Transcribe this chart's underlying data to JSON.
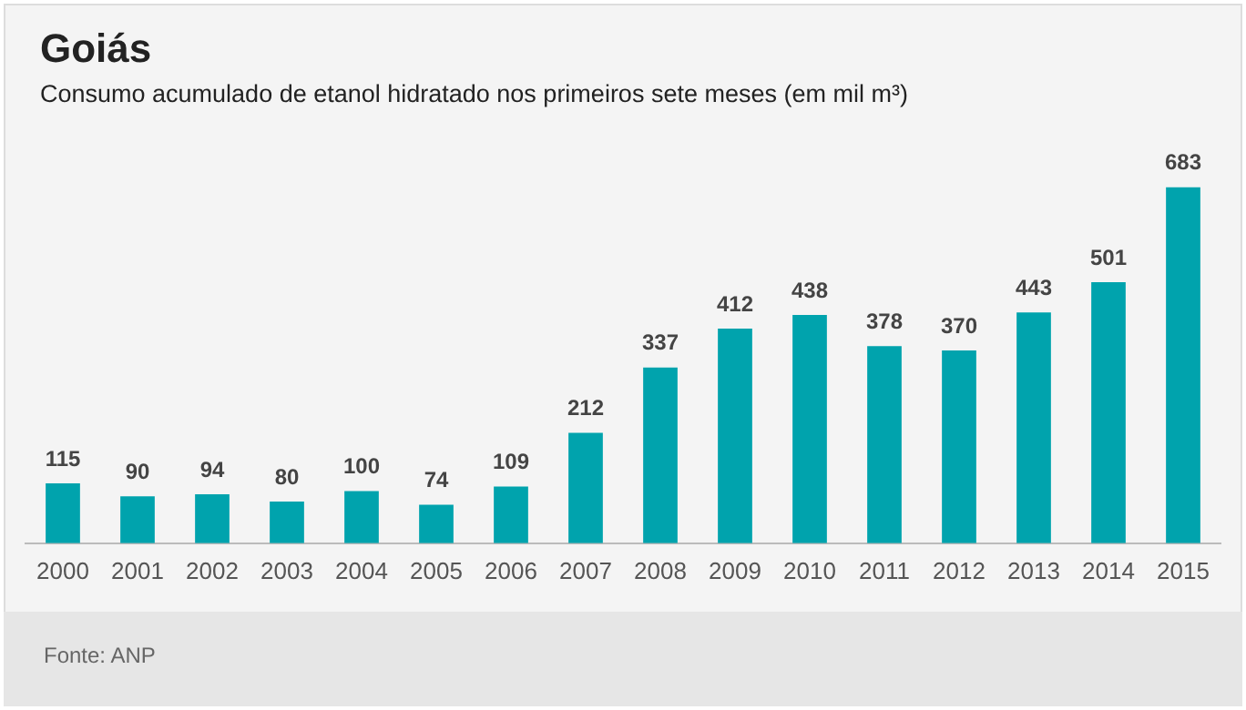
{
  "chart_data": {
    "type": "bar",
    "title": "Goiás",
    "subtitle": "Consumo acumulado de etanol hidratado nos primeiros sete meses (em mil m³)",
    "categories": [
      "2000",
      "2001",
      "2002",
      "2003",
      "2004",
      "2005",
      "2006",
      "2007",
      "2008",
      "2009",
      "2010",
      "2011",
      "2012",
      "2013",
      "2014",
      "2015"
    ],
    "values": [
      115,
      90,
      94,
      80,
      100,
      74,
      109,
      212,
      337,
      412,
      438,
      378,
      370,
      443,
      501,
      683
    ],
    "color": "#00a3ad",
    "data_labels": true,
    "grid": false,
    "legend": false,
    "annotations": [
      "Fonte: ANP"
    ]
  }
}
